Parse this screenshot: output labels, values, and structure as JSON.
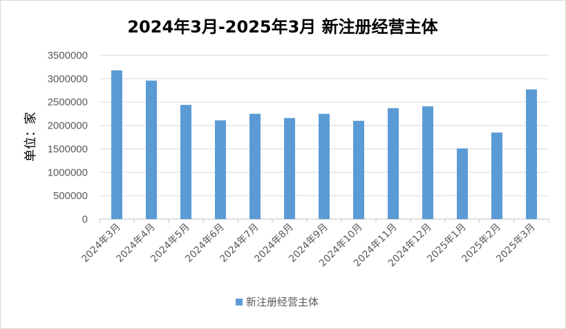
{
  "chart_data": {
    "type": "bar",
    "title": "2024年3月-2025年3月 新注册经营主体",
    "ylabel": "单位：家",
    "xlabel": "",
    "ylim": [
      0,
      3500000
    ],
    "yticks": [
      0,
      500000,
      1000000,
      1500000,
      2000000,
      2500000,
      3000000,
      3500000
    ],
    "categories": [
      "2024年3月",
      "2024年4月",
      "2024年5月",
      "2024年6月",
      "2024年7月",
      "2024年8月",
      "2024年9月",
      "2024年10月",
      "2024年11月",
      "2024年12月",
      "2025年1月",
      "2025年2月",
      "2025年3月"
    ],
    "series": [
      {
        "name": "新注册经营主体",
        "color": "#5b9bd5",
        "values": [
          3180000,
          2960000,
          2440000,
          2110000,
          2250000,
          2160000,
          2250000,
          2100000,
          2370000,
          2410000,
          1510000,
          1850000,
          2770000
        ]
      }
    ],
    "grid": true,
    "legend": "bottom"
  }
}
